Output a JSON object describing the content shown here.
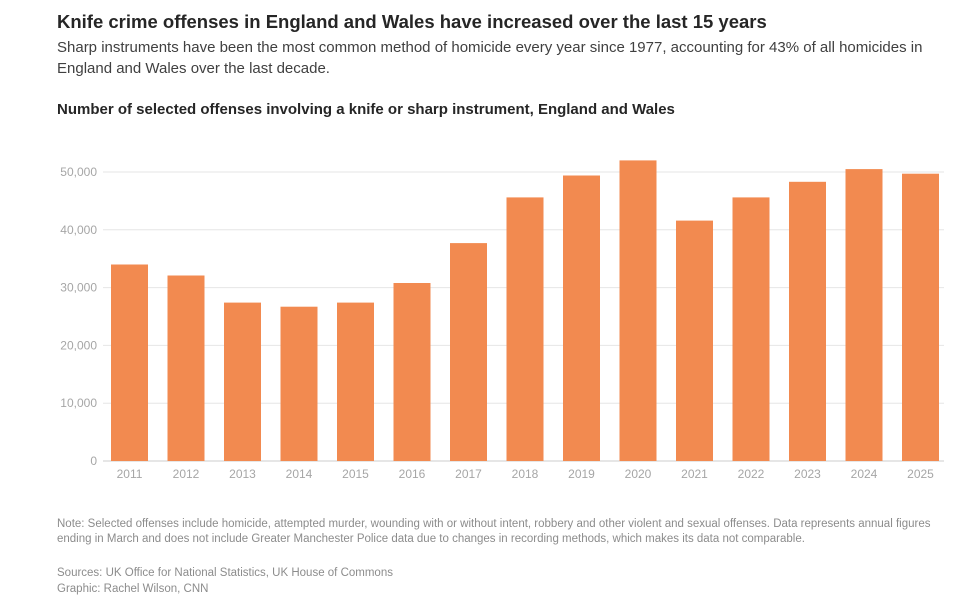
{
  "header": {
    "title": "Knife crime offenses in England and Wales have increased over the last 15 years",
    "subtitle": "Sharp instruments have been the most common method of homicide every year since 1977, accounting for 43% of all homicides in England and Wales over the last decade."
  },
  "chart_data": {
    "type": "bar",
    "title": "Number of selected offenses involving a knife or sharp instrument, England and Wales",
    "categories": [
      "2011",
      "2012",
      "2013",
      "2014",
      "2015",
      "2016",
      "2017",
      "2018",
      "2019",
      "2020",
      "2021",
      "2022",
      "2023",
      "2024",
      "2025"
    ],
    "values": [
      34000,
      32100,
      27400,
      26700,
      27400,
      30800,
      37700,
      45600,
      49400,
      52000,
      41600,
      45600,
      48300,
      50500,
      49700
    ],
    "ylim": [
      0,
      55000
    ],
    "yticks": [
      0,
      10000,
      20000,
      30000,
      40000,
      50000
    ],
    "ytick_labels": [
      "0",
      "10,000",
      "20,000",
      "30,000",
      "40,000",
      "50,000"
    ],
    "xlabel": "",
    "ylabel": "",
    "grid": true,
    "bar_color": "#f28a50",
    "grid_color": "#e6e6e6"
  },
  "footer": {
    "note": "Note: Selected offenses include homicide, attempted murder, wounding with or without intent, robbery and other violent and sexual offenses. Data represents annual figures ending in March and does not include Greater Manchester Police data due to changes in recording methods, which makes its data not comparable.",
    "sources": "Sources: UK Office for National Statistics, UK House of Commons",
    "graphic": "Graphic: Rachel Wilson, CNN"
  }
}
